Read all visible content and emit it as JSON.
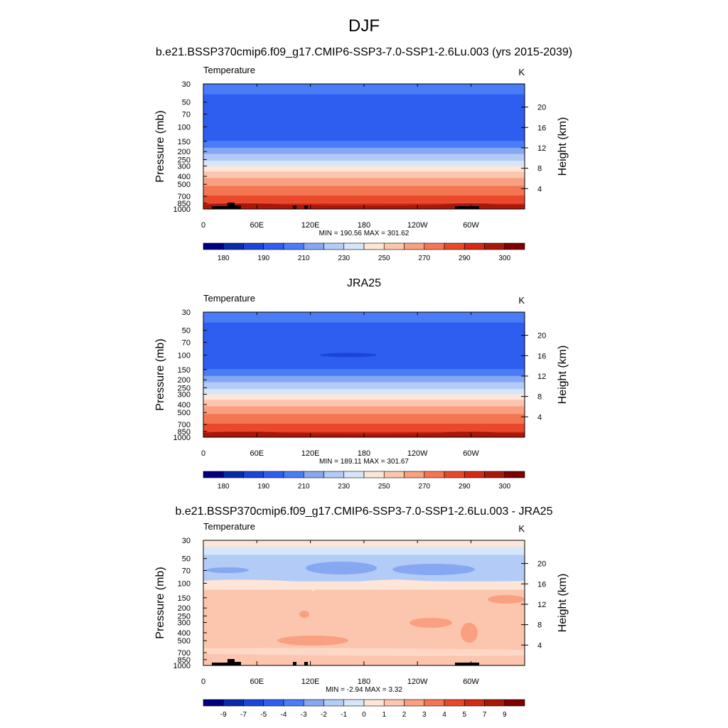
{
  "page": {
    "title": "DJF",
    "subtitle": "b.e21.BSSP370cmip6.f09_g17.CMIP6-SSP3-7.0-SSP1-2.6Lu.003 (yrs 2015-2039)"
  },
  "colors": {
    "levels_abs": [
      "#000080",
      "#0a2aa8",
      "#1a45d6",
      "#2d5ef0",
      "#4a7cf6",
      "#86a8f2",
      "#b3cbf7",
      "#d6e6fa",
      "#fde5d8",
      "#fcc5ad",
      "#f9a080",
      "#f47552",
      "#e9482b",
      "#d22a14",
      "#a8180a",
      "#7e0000"
    ],
    "level_mapping_note_hidden": ""
  },
  "chart_data": [
    {
      "type": "heatmap",
      "panel_title": "",
      "left_label": "Temperature",
      "units": "K",
      "xlabel": "",
      "ylabel": "Pressure (mb)",
      "ylabel_right": "Height (km)",
      "x_ticks": [
        "0",
        "60E",
        "120E",
        "180",
        "120W",
        "60W"
      ],
      "y_ticks": [
        "30",
        "50",
        "70",
        "100",
        "150",
        "200",
        "250",
        "300",
        "400",
        "500",
        "700",
        "850",
        "1000"
      ],
      "y_ticks_right": [
        "20",
        "16",
        "12",
        "8",
        "4"
      ],
      "stats": "MIN = 190.56  MAX = 301.62",
      "min": 190.56,
      "max": 301.62,
      "colorbar_labels": [
        "180",
        "190",
        "210",
        "230",
        "250",
        "270",
        "290",
        "300"
      ],
      "colorbar_levels": [
        175,
        180,
        185,
        190,
        200,
        210,
        220,
        230,
        240,
        250,
        260,
        270,
        280,
        290,
        295,
        300,
        305
      ],
      "bands": [
        {
          "p_top": 30,
          "p_bot": 40,
          "value": 205
        },
        {
          "p_top": 40,
          "p_bot": 150,
          "value": 195
        },
        {
          "p_top": 150,
          "p_bot": 180,
          "value": 205
        },
        {
          "p_top": 180,
          "p_bot": 215,
          "value": 215
        },
        {
          "p_top": 215,
          "p_bot": 260,
          "value": 225
        },
        {
          "p_top": 260,
          "p_bot": 300,
          "value": 235
        },
        {
          "p_top": 300,
          "p_bot": 350,
          "value": 245
        },
        {
          "p_top": 350,
          "p_bot": 420,
          "value": 255
        },
        {
          "p_top": 420,
          "p_bot": 520,
          "value": 265
        },
        {
          "p_top": 520,
          "p_bot": 680,
          "value": 275
        },
        {
          "p_top": 680,
          "p_bot": 850,
          "value": 285
        },
        {
          "p_top": 850,
          "p_bot": 1000,
          "value": 292
        }
      ],
      "topography": true
    },
    {
      "type": "heatmap",
      "panel_title": "JRA25",
      "left_label": "Temperature",
      "units": "K",
      "xlabel": "",
      "ylabel": "Pressure (mb)",
      "ylabel_right": "Height (km)",
      "x_ticks": [
        "0",
        "60E",
        "120E",
        "180",
        "120W",
        "60W"
      ],
      "y_ticks": [
        "30",
        "50",
        "70",
        "100",
        "150",
        "200",
        "250",
        "300",
        "400",
        "500",
        "700",
        "850",
        "1000"
      ],
      "y_ticks_right": [
        "20",
        "16",
        "12",
        "8",
        "4"
      ],
      "stats": "MIN = 189.11  MAX = 301.67",
      "min": 189.11,
      "max": 301.67,
      "colorbar_labels": [
        "180",
        "190",
        "210",
        "230",
        "250",
        "270",
        "290",
        "300"
      ],
      "colorbar_levels": [
        175,
        180,
        185,
        190,
        200,
        210,
        220,
        230,
        240,
        250,
        260,
        270,
        280,
        290,
        295,
        300,
        305
      ],
      "bands": [
        {
          "p_top": 30,
          "p_bot": 40,
          "value": 205
        },
        {
          "p_top": 40,
          "p_bot": 150,
          "value": 195
        },
        {
          "p_top": 150,
          "p_bot": 180,
          "value": 205
        },
        {
          "p_top": 180,
          "p_bot": 215,
          "value": 215
        },
        {
          "p_top": 215,
          "p_bot": 260,
          "value": 225
        },
        {
          "p_top": 260,
          "p_bot": 300,
          "value": 235
        },
        {
          "p_top": 300,
          "p_bot": 350,
          "value": 245
        },
        {
          "p_top": 350,
          "p_bot": 420,
          "value": 255
        },
        {
          "p_top": 420,
          "p_bot": 520,
          "value": 265
        },
        {
          "p_top": 520,
          "p_bot": 680,
          "value": 275
        },
        {
          "p_top": 680,
          "p_bot": 850,
          "value": 285
        },
        {
          "p_top": 850,
          "p_bot": 1000,
          "value": 292
        }
      ],
      "topography": false
    },
    {
      "type": "heatmap",
      "panel_title": "b.e21.BSSP370cmip6.f09_g17.CMIP6-SSP3-7.0-SSP1-2.6Lu.003 - JRA25",
      "left_label": "Temperature",
      "units": "K",
      "xlabel": "",
      "ylabel": "Pressure (mb)",
      "ylabel_right": "Height (km)",
      "x_ticks": [
        "0",
        "60E",
        "120E",
        "180",
        "120W",
        "60W"
      ],
      "y_ticks": [
        "30",
        "50",
        "70",
        "100",
        "150",
        "200",
        "250",
        "300",
        "400",
        "500",
        "700",
        "850",
        "1000"
      ],
      "y_ticks_right": [
        "20",
        "16",
        "12",
        "8",
        "4"
      ],
      "stats": "MIN =  -2.94  MAX =   3.32",
      "min": -2.94,
      "max": 3.32,
      "colorbar_labels": [
        "-9",
        "-7",
        "-5",
        "-4",
        "-3",
        "-2",
        "-1",
        "0",
        "1",
        "2",
        "3",
        "4",
        "5",
        "7",
        "9"
      ],
      "colorbar_levels": [
        -10,
        -9,
        -7,
        -5,
        -4,
        -3,
        -2,
        -1,
        0,
        1,
        2,
        3,
        4,
        5,
        7,
        9,
        10
      ],
      "bands": [
        {
          "p_top": 30,
          "p_bot": 36,
          "value": 0.5
        },
        {
          "p_top": 36,
          "p_bot": 45,
          "value": -0.5
        },
        {
          "p_top": 45,
          "p_bot": 95,
          "value": -1.5
        },
        {
          "p_top": 95,
          "p_bot": 120,
          "value": 0.5
        },
        {
          "p_top": 120,
          "p_bot": 1000,
          "value": 1.5
        }
      ],
      "topography": true
    }
  ]
}
